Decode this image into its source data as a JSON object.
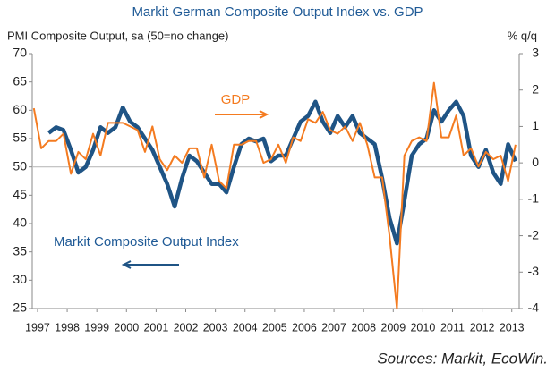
{
  "chart_data": {
    "type": "line",
    "title": "Markit German Composite Output Index vs. GDP",
    "y_label": "PMI Composite Output, sa (50=no change)",
    "y2_label": "% q/q",
    "source": "Sources: Markit, EcoWin.",
    "annotations": [
      "GDP",
      "Markit Composite Output Index"
    ],
    "x": [
      1996.875,
      1997.125,
      1997.375,
      1997.625,
      1997.875,
      1998.125,
      1998.375,
      1998.625,
      1998.875,
      1999.125,
      1999.375,
      1999.625,
      1999.875,
      2000.125,
      2000.375,
      2000.625,
      2000.875,
      2001.125,
      2001.375,
      2001.625,
      2001.875,
      2002.125,
      2002.375,
      2002.625,
      2002.875,
      2003.125,
      2003.375,
      2003.625,
      2003.875,
      2004.125,
      2004.375,
      2004.625,
      2004.875,
      2005.125,
      2005.375,
      2005.625,
      2005.875,
      2006.125,
      2006.375,
      2006.625,
      2006.875,
      2007.125,
      2007.375,
      2007.625,
      2007.875,
      2008.125,
      2008.375,
      2008.625,
      2008.875,
      2009.125,
      2009.375,
      2009.625,
      2009.875,
      2010.125,
      2010.375,
      2010.625,
      2010.875,
      2011.125,
      2011.375,
      2011.625,
      2011.875,
      2012.125,
      2012.375,
      2012.625,
      2012.875,
      2013.125
    ],
    "series": [
      {
        "name": "Markit Composite Output Index",
        "color": "#1f5485",
        "axis": "y",
        "values": [
          null,
          null,
          56,
          57,
          56.5,
          53,
          49,
          50,
          53,
          57,
          56,
          57,
          60.5,
          58,
          57,
          55,
          53,
          50,
          47,
          43,
          48,
          52,
          51,
          49,
          47,
          47,
          45.5,
          50,
          54,
          55,
          54.5,
          55,
          51,
          52,
          52,
          55,
          58,
          59,
          61.5,
          58,
          56,
          59,
          57,
          59,
          56,
          55,
          54,
          48,
          41,
          36.5,
          44,
          52,
          54,
          55,
          60,
          58,
          60,
          61.5,
          59,
          52,
          50,
          53,
          49,
          47,
          54,
          51
        ]
      },
      {
        "name": "GDP",
        "color": "#f47b20",
        "axis": "y2",
        "values": [
          1.5,
          0.4,
          0.6,
          0.6,
          0.8,
          -0.3,
          0.3,
          0.1,
          0.8,
          0.2,
          1.1,
          1.1,
          1.1,
          1.0,
          0.9,
          0.3,
          1.0,
          0.1,
          -0.2,
          0.2,
          0.0,
          0.4,
          0.4,
          -0.4,
          0.5,
          -0.5,
          -0.7,
          0.5,
          0.5,
          0.6,
          0.6,
          0.0,
          0.1,
          0.5,
          0.0,
          0.7,
          0.6,
          1.2,
          1.1,
          1.4,
          0.9,
          0.8,
          1.0,
          0.6,
          1.1,
          0.5,
          -0.4,
          -0.4,
          -2.0,
          -4.0,
          0.2,
          0.6,
          0.7,
          0.6,
          2.2,
          0.7,
          0.7,
          1.3,
          0.2,
          0.4,
          -0.1,
          0.3,
          0.1,
          0.2,
          -0.5,
          0.5
        ]
      }
    ],
    "xlim": [
      1996.82,
      2013.25
    ],
    "xticks": [
      1997,
      1998,
      1999,
      2000,
      2001,
      2002,
      2003,
      2004,
      2005,
      2006,
      2007,
      2008,
      2009,
      2010,
      2011,
      2012,
      2013
    ],
    "ylim": [
      25,
      70
    ],
    "yticks": [
      25,
      30,
      35,
      40,
      45,
      50,
      55,
      60,
      65,
      70
    ],
    "y2lim": [
      -4,
      3
    ],
    "y2ticks": [
      -4,
      -3,
      -2,
      -1,
      0,
      1,
      2,
      3
    ],
    "hlines": [
      50
    ],
    "grid": false
  }
}
